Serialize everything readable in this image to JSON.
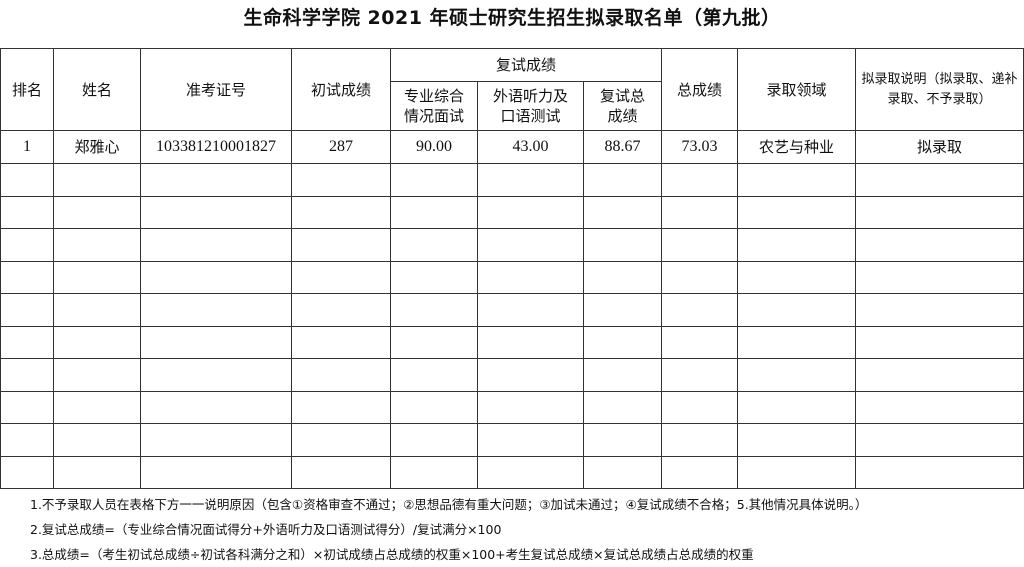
{
  "title": "生命科学学院 2021 年硕士研究生招生拟录取名单（第九批）",
  "headers": {
    "rank": "排名",
    "name": "姓名",
    "exam_id": "准考证号",
    "prelim_score": "初试成绩",
    "retest_group": "复试成绩",
    "retest_interview": "专业综合情况面试",
    "retest_language": "外语听力及口语测试",
    "retest_total": "复试总成绩",
    "total_score": "总成绩",
    "field": "录取领域",
    "admission_note": "拟录取说明（拟录取、递补录取、不予录取）"
  },
  "rows": [
    {
      "rank": "1",
      "name": "郑雅心",
      "exam_id": "103381210001827",
      "prelim_score": "287",
      "retest_interview": "90.00",
      "retest_language": "43.00",
      "retest_total": "88.67",
      "total_score": "73.03",
      "field": "农艺与种业",
      "admission_note": "拟录取"
    }
  ],
  "empty_rows": 10,
  "notes": [
    "1.不予录取人员在表格下方一一说明原因（包含①资格审查不通过；②思想品德有重大问题；③加试未通过；④复试成绩不合格；5.其他情况具体说明。）",
    "2.复试总成绩=（专业综合情况面试得分+外语听力及口语测试得分）/复试满分×100",
    "3.总成绩=（考生初试总成绩÷初试各科满分之和）×初试成绩占总成绩的权重×100+考生复试总成绩×复试总成绩占总成绩的权重"
  ]
}
